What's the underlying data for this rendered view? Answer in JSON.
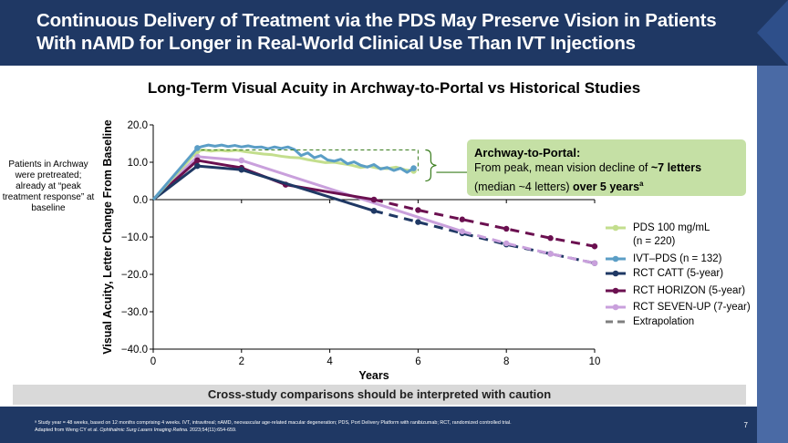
{
  "slide": {
    "title": "Continuous Delivery of Treatment via the PDS May Preserve Vision in Patients With nAMD for Longer in Real-World Clinical Use Than IVT Injections",
    "side_note": "Patients in Archway were pretreated; already at “peak treatment response” at baseline",
    "caution": "Cross-study comparisons should be interpreted with caution",
    "page_number": "7",
    "footnote_line1": "ᵃ Study year = 48 weeks, based on 12 months comprising 4 weeks. IVT, intravitreal; nAMD, neovascular age-related macular degeneration; PDS, Port Delivery Platform with ranibizumab; RCT, randomized controlled trial.",
    "footnote_line2_a": "Adapted from Weng CY et al. ",
    "footnote_line2_journal": "Ophthalmic Surg Lasers Imaging Retina.",
    "footnote_line2_b": " 2023;54(11):654-659."
  },
  "callout": {
    "title": "Archway-to-Portal:",
    "line1_a": "From peak, mean vision decline of ",
    "line1_bold": "~7 letters",
    "line2_a": "(median ~4 letters) ",
    "line2_bold": "over 5 years",
    "line2_sup": "a"
  },
  "chart_data": {
    "type": "line",
    "title": "Long-Term Visual Acuity in Archway-to-Portal vs Historical Studies",
    "xlabel": "Years",
    "ylabel": "Visual Acuity, Letter Change From Baseline",
    "xlim": [
      0,
      10
    ],
    "ylim": [
      -40,
      20
    ],
    "x_ticks": [
      "0",
      "2",
      "4",
      "6",
      "8",
      "10"
    ],
    "y_ticks": [
      "20.0",
      "10.0",
      "0.0",
      "−10.0",
      "−20.0",
      "−30.0",
      "−40.0"
    ],
    "grid": false,
    "legend_position": "right",
    "colors": {
      "pds": "#c3de8d",
      "ivt_pds": "#5b9ec6",
      "catt": "#1f3864",
      "horizon": "#6b1050",
      "sevenup": "#c9a0dc",
      "extrapolation": "#7f7f7f",
      "callout_bg": "#c5e0a5",
      "header_bg": "#1f3864"
    },
    "series": [
      {
        "name": "PDS 100 mg/mL",
        "name_line2": "(n = 220)",
        "key": "pds",
        "points": [
          [
            0,
            0
          ],
          [
            1,
            13
          ],
          [
            1.15,
            13.3
          ],
          [
            1.3,
            13
          ],
          [
            1.5,
            13.2
          ],
          [
            1.7,
            13
          ],
          [
            1.9,
            13.2
          ],
          [
            2.1,
            12.8
          ],
          [
            2.3,
            12.5
          ],
          [
            2.5,
            12.2
          ],
          [
            2.7,
            12
          ],
          [
            2.9,
            11.6
          ],
          [
            3.1,
            11.3
          ],
          [
            3.3,
            11.2
          ],
          [
            3.5,
            10.7
          ],
          [
            3.7,
            10.3
          ],
          [
            3.9,
            9.9
          ],
          [
            4.1,
            10
          ],
          [
            4.3,
            9.6
          ],
          [
            4.5,
            9.2
          ],
          [
            4.7,
            8.6
          ],
          [
            4.9,
            8.9
          ],
          [
            5.1,
            8.4
          ],
          [
            5.3,
            8.3
          ],
          [
            5.5,
            8.7
          ],
          [
            5.7,
            8
          ],
          [
            5.9,
            7.7
          ]
        ]
      },
      {
        "name": "IVT–PDS (n = 132)",
        "key": "ivt_pds",
        "points": [
          [
            0,
            0
          ],
          [
            1,
            13.8
          ],
          [
            1.1,
            14.2
          ],
          [
            1.25,
            14.6
          ],
          [
            1.4,
            14.3
          ],
          [
            1.55,
            14.6
          ],
          [
            1.7,
            14.2
          ],
          [
            1.85,
            14.5
          ],
          [
            2,
            14.1
          ],
          [
            2.15,
            14.4
          ],
          [
            2.3,
            14
          ],
          [
            2.45,
            14.1
          ],
          [
            2.6,
            13.6
          ],
          [
            2.75,
            14.1
          ],
          [
            2.9,
            13.7
          ],
          [
            3.05,
            14.1
          ],
          [
            3.2,
            13.4
          ],
          [
            3.35,
            11.8
          ],
          [
            3.5,
            12.5
          ],
          [
            3.65,
            11.2
          ],
          [
            3.8,
            11.8
          ],
          [
            3.95,
            10.6
          ],
          [
            4.1,
            10.3
          ],
          [
            4.25,
            10.8
          ],
          [
            4.4,
            9.6
          ],
          [
            4.55,
            10.1
          ],
          [
            4.7,
            9.2
          ],
          [
            4.85,
            8.7
          ],
          [
            5,
            9.4
          ],
          [
            5.15,
            8.2
          ],
          [
            5.3,
            8.6
          ],
          [
            5.45,
            7.8
          ],
          [
            5.6,
            8.4
          ],
          [
            5.75,
            7.3
          ],
          [
            5.9,
            8.4
          ]
        ]
      },
      {
        "name": "RCT CATT (5-year)",
        "key": "catt",
        "points": [
          [
            0,
            0
          ],
          [
            1,
            9
          ],
          [
            2,
            8
          ],
          [
            5,
            -3
          ]
        ],
        "extrapolation": [
          [
            5,
            -3
          ],
          [
            6,
            -6
          ],
          [
            7,
            -9
          ],
          [
            8,
            -12
          ],
          [
            9,
            -14.5
          ],
          [
            10,
            -17
          ]
        ]
      },
      {
        "name": "RCT HORIZON (5-year)",
        "key": "horizon",
        "points": [
          [
            0,
            0
          ],
          [
            1,
            10.5
          ],
          [
            2,
            8.5
          ],
          [
            3,
            4
          ],
          [
            5,
            0
          ]
        ],
        "extrapolation": [
          [
            5,
            0
          ],
          [
            6,
            -2.8
          ],
          [
            7,
            -5.3
          ],
          [
            8,
            -7.8
          ],
          [
            9,
            -10.3
          ],
          [
            10,
            -12.5
          ]
        ]
      },
      {
        "name": "RCT SEVEN-UP (7-year)",
        "key": "sevenup",
        "points": [
          [
            0,
            0
          ],
          [
            1,
            11.5
          ],
          [
            2,
            10.5
          ],
          [
            7,
            -8.5
          ]
        ],
        "extrapolation": [
          [
            7,
            -8.5
          ],
          [
            8,
            -11.7
          ],
          [
            9,
            -14.5
          ],
          [
            10,
            -17
          ]
        ]
      },
      {
        "name": "Extrapolation",
        "key": "extrapolation",
        "points": []
      }
    ],
    "annotation": {
      "peak_level": 13.3,
      "peak_x": [
        1,
        6
      ]
    }
  }
}
